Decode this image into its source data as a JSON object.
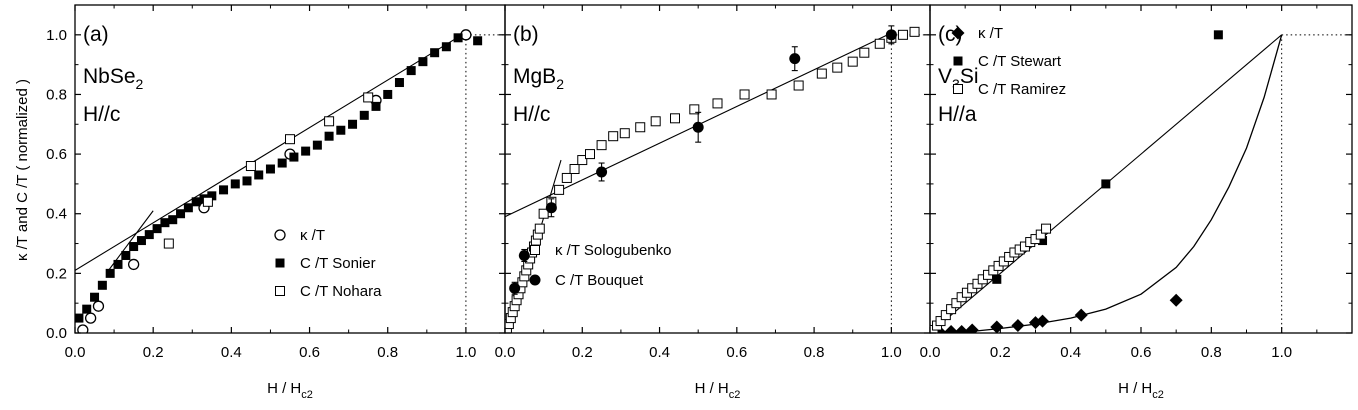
{
  "ylabel": "κ /T  and C /T  ( normalized )",
  "chart_data": [
    {
      "type": "scatter",
      "panel": "(a)",
      "material": {
        "base": "NbSe",
        "sub": "2"
      },
      "field": "H//c",
      "xlabel": {
        "main": "H / H",
        "sub": "c2"
      },
      "xlim": [
        0,
        1.1
      ],
      "ylim": [
        0,
        1.1
      ],
      "xticks": [
        "0.0",
        "0.2",
        "0.4",
        "0.6",
        "0.8",
        "1.0"
      ],
      "yticks": [
        "0.0",
        "0.2",
        "0.4",
        "0.6",
        "0.8",
        "1.0"
      ],
      "series": [
        {
          "name": "κ /T",
          "marker": "circle-open",
          "x": [
            0.02,
            0.04,
            0.06,
            0.15,
            0.33,
            0.55,
            0.77,
            1.0
          ],
          "y": [
            0.01,
            0.05,
            0.09,
            0.23,
            0.42,
            0.6,
            0.78,
            1.0
          ]
        },
        {
          "name": "C /T Sonier",
          "marker": "square-filled",
          "x": [
            0.01,
            0.03,
            0.05,
            0.07,
            0.09,
            0.11,
            0.13,
            0.15,
            0.17,
            0.19,
            0.21,
            0.23,
            0.25,
            0.27,
            0.29,
            0.31,
            0.33,
            0.35,
            0.38,
            0.41,
            0.44,
            0.47,
            0.5,
            0.53,
            0.56,
            0.59,
            0.62,
            0.65,
            0.68,
            0.71,
            0.74,
            0.77,
            0.8,
            0.83,
            0.86,
            0.89,
            0.92,
            0.95,
            0.98,
            1.03
          ],
          "y": [
            0.05,
            0.08,
            0.12,
            0.16,
            0.2,
            0.23,
            0.26,
            0.29,
            0.31,
            0.33,
            0.35,
            0.37,
            0.38,
            0.4,
            0.42,
            0.44,
            0.45,
            0.46,
            0.48,
            0.5,
            0.51,
            0.53,
            0.55,
            0.57,
            0.59,
            0.61,
            0.63,
            0.66,
            0.68,
            0.7,
            0.73,
            0.76,
            0.8,
            0.84,
            0.88,
            0.91,
            0.94,
            0.96,
            0.99,
            0.98
          ]
        },
        {
          "name": "C /T Nohara",
          "marker": "square-open",
          "x": [
            0.24,
            0.34,
            0.45,
            0.55,
            0.65,
            0.75
          ],
          "y": [
            0.3,
            0.44,
            0.56,
            0.65,
            0.71,
            0.79
          ]
        }
      ],
      "lines": [
        {
          "kind": "straight",
          "x": [
            0,
            0.99
          ],
          "y": [
            0.21,
            1.0
          ]
        },
        {
          "kind": "straight",
          "x": [
            0.08,
            0.2
          ],
          "y": [
            0.2,
            0.41
          ]
        }
      ],
      "vline": 1.0,
      "hline": {
        "y": 1.0,
        "from": 1.0
      }
    },
    {
      "type": "scatter",
      "panel": "(b)",
      "material": {
        "base": "MgB",
        "sub": "2"
      },
      "field": "H//c",
      "xlabel": {
        "main": "H / H",
        "sub": "c2"
      },
      "xlim": [
        0,
        1.1
      ],
      "ylim": [
        0,
        1.1
      ],
      "xticks": [
        "0.0",
        "0.2",
        "0.4",
        "0.6",
        "0.8",
        "1.0"
      ],
      "yticks": [],
      "series": [
        {
          "name": "κ /T   Sologubenko",
          "marker": "square-open",
          "x": [
            0.005,
            0.01,
            0.015,
            0.02,
            0.025,
            0.03,
            0.035,
            0.04,
            0.045,
            0.05,
            0.055,
            0.06,
            0.065,
            0.07,
            0.075,
            0.08,
            0.085,
            0.09,
            0.1,
            0.12,
            0.14,
            0.16,
            0.18,
            0.2,
            0.22,
            0.25,
            0.28,
            0.31,
            0.35,
            0.39,
            0.44,
            0.49,
            0.55,
            0.62,
            0.69,
            0.76,
            0.82,
            0.86,
            0.9,
            0.93,
            0.97,
            1.0,
            1.03,
            1.06
          ],
          "y": [
            0.01,
            0.03,
            0.05,
            0.07,
            0.09,
            0.11,
            0.13,
            0.15,
            0.17,
            0.19,
            0.21,
            0.23,
            0.25,
            0.27,
            0.29,
            0.31,
            0.33,
            0.35,
            0.4,
            0.44,
            0.48,
            0.52,
            0.55,
            0.58,
            0.6,
            0.63,
            0.66,
            0.67,
            0.69,
            0.71,
            0.72,
            0.75,
            0.77,
            0.8,
            0.8,
            0.83,
            0.87,
            0.89,
            0.91,
            0.94,
            0.97,
            0.99,
            1.0,
            1.01
          ]
        },
        {
          "name": "C /T   Bouquet",
          "marker": "circle-filled",
          "x": [
            0.025,
            0.05,
            0.12,
            0.25,
            0.5,
            0.75,
            1.0
          ],
          "y": [
            0.15,
            0.26,
            0.42,
            0.54,
            0.69,
            0.92,
            1.0
          ],
          "yerr": [
            0.02,
            0.02,
            0.03,
            0.03,
            0.05,
            0.04,
            0.03
          ]
        }
      ],
      "lines": [
        {
          "kind": "straight",
          "x": [
            0,
            0.99
          ],
          "y": [
            0.39,
            1.0
          ]
        },
        {
          "kind": "straight",
          "x": [
            0.01,
            0.145
          ],
          "y": [
            0.0,
            0.58
          ]
        }
      ],
      "vline": 1.0,
      "hline": {
        "y": 1.0,
        "from": 1.0
      }
    },
    {
      "type": "scatter",
      "panel": "(c)",
      "material": {
        "pre": "V",
        "sub": "3",
        "post": "Si"
      },
      "field": "H//a",
      "xlabel": {
        "main": "H / H",
        "sub": "c2"
      },
      "xlim": [
        0,
        1.2
      ],
      "ylim": [
        0,
        1.1
      ],
      "xticks": [
        "0.0",
        "0.2",
        "0.4",
        "0.6",
        "0.8",
        "1.0"
      ],
      "yticks": [],
      "series": [
        {
          "name": "κ /T",
          "marker": "diamond-filled",
          "x": [
            0.03,
            0.06,
            0.09,
            0.12,
            0.19,
            0.25,
            0.3,
            0.32,
            0.43,
            0.7
          ],
          "y": [
            0.0,
            0.005,
            0.005,
            0.01,
            0.02,
            0.025,
            0.035,
            0.04,
            0.06,
            0.11
          ]
        },
        {
          "name": "C /T  Stewart",
          "marker": "square-filled",
          "x": [
            0.19,
            0.32,
            0.5,
            0.82
          ],
          "y": [
            0.18,
            0.31,
            0.5,
            1.0
          ]
        },
        {
          "name": "C /T  Ramirez",
          "marker": "square-open",
          "x": [
            0.01,
            0.02,
            0.03,
            0.045,
            0.06,
            0.075,
            0.09,
            0.105,
            0.12,
            0.135,
            0.15,
            0.165,
            0.18,
            0.195,
            0.21,
            0.225,
            0.24,
            0.255,
            0.27,
            0.285,
            0.3,
            0.315,
            0.33
          ],
          "y": [
            0.01,
            0.025,
            0.04,
            0.06,
            0.08,
            0.1,
            0.12,
            0.135,
            0.15,
            0.165,
            0.18,
            0.195,
            0.21,
            0.225,
            0.24,
            0.255,
            0.27,
            0.28,
            0.29,
            0.305,
            0.315,
            0.33,
            0.35
          ]
        }
      ],
      "lines": [
        {
          "kind": "straight",
          "x": [
            0,
            1.0
          ],
          "y": [
            0,
            1.0
          ]
        },
        {
          "kind": "curve",
          "x": [
            0.0,
            0.1,
            0.2,
            0.3,
            0.4,
            0.5,
            0.6,
            0.7,
            0.75,
            0.8,
            0.85,
            0.9,
            0.95,
            1.0
          ],
          "y": [
            0.0,
            0.003,
            0.015,
            0.03,
            0.05,
            0.08,
            0.13,
            0.22,
            0.29,
            0.38,
            0.49,
            0.62,
            0.79,
            1.0
          ]
        }
      ],
      "vline": 1.0,
      "hline": {
        "y": 1.0,
        "from": 1.0
      }
    }
  ]
}
